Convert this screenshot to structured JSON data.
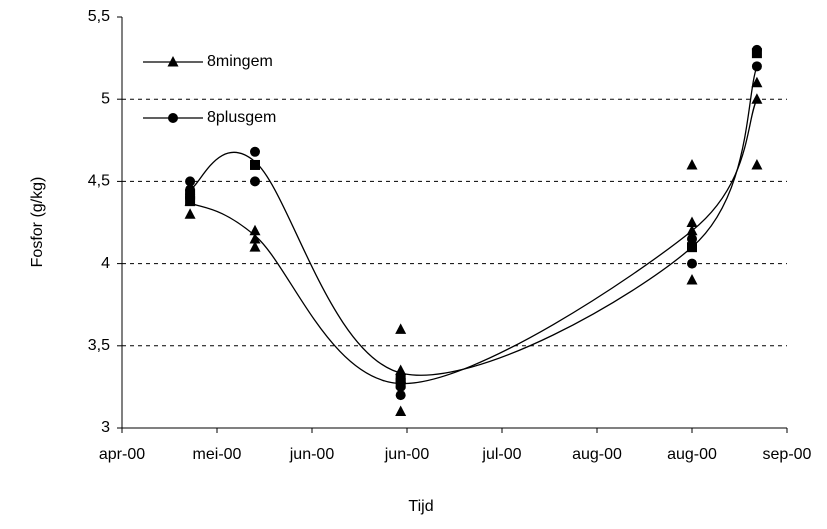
{
  "chart_data": {
    "type": "scatter",
    "x_label": "Tijd",
    "y_label": "Fosfor (g/kg)",
    "xlim": [
      0,
      210
    ],
    "xticks": [
      {
        "value": 0,
        "label": "apr-00"
      },
      {
        "value": 30,
        "label": "mei-00"
      },
      {
        "value": 60,
        "label": "jun-00"
      },
      {
        "value": 90,
        "label": "jun-00"
      },
      {
        "value": 120,
        "label": "jul-00"
      },
      {
        "value": 150,
        "label": "aug-00"
      },
      {
        "value": 180,
        "label": "aug-00"
      },
      {
        "value": 210,
        "label": "sep-00"
      }
    ],
    "ylim": [
      3,
      5.5
    ],
    "yticks": [
      3,
      {
        "value": 3.5,
        "label": "3,5"
      },
      4,
      {
        "value": 4.5,
        "label": "4,5"
      },
      5,
      {
        "value": 5.5,
        "label": "5,5"
      }
    ],
    "grid": true,
    "legend": "top-left",
    "series": [
      {
        "name": "8mingem",
        "color": "#000000",
        "marker": "triangle",
        "x": [
          21.5,
          21.5,
          42,
          42,
          42,
          88,
          88,
          88,
          88,
          180,
          180,
          180,
          180,
          200.5,
          200.5,
          200.5
        ],
        "values": [
          4.3,
          4.38,
          4.2,
          4.15,
          4.1,
          3.6,
          3.35,
          3.3,
          3.1,
          4.6,
          4.25,
          3.9,
          4.2,
          5.1,
          5.0,
          4.6
        ],
        "line_x": [
          21.5,
          42,
          89,
          180,
          200.5
        ],
        "line_values": [
          4.37,
          4.17,
          3.27,
          4.2,
          5.0
        ]
      },
      {
        "name": "8plusgem",
        "color": "#000000",
        "marker": "circle",
        "x": [
          21.5,
          21.5,
          21.5,
          42,
          42,
          88,
          88,
          88,
          180,
          180,
          200.5,
          200.5
        ],
        "values": [
          4.5,
          4.45,
          4.42,
          4.5,
          4.68,
          3.2,
          3.25,
          3.3,
          4.0,
          4.15,
          5.3,
          5.2
        ],
        "line_x": [
          21.5,
          42,
          89,
          180,
          200.5
        ],
        "line_values": [
          4.45,
          4.62,
          3.33,
          4.1,
          5.2
        ]
      },
      {
        "color": "#000000",
        "marker": "square",
        "x": [
          21.5,
          21.5,
          42,
          88,
          88,
          180,
          200.5
        ],
        "values": [
          4.38,
          4.42,
          4.6,
          3.3,
          3.27,
          4.1,
          5.28
        ]
      }
    ]
  }
}
